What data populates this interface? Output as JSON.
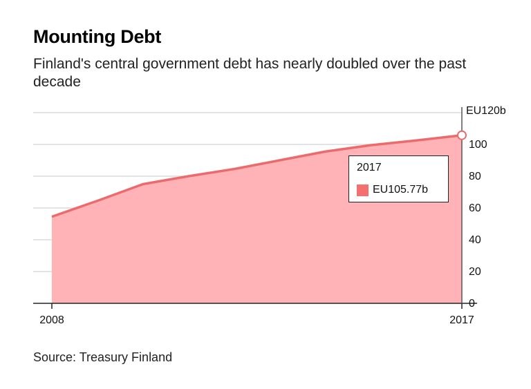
{
  "title": "Mounting Debt",
  "subtitle": "Finland's central government debt has nearly doubled over the past decade",
  "source": "Source: Treasury Finland",
  "colors": {
    "area": "#ffb3b6",
    "line": "#ec6a6c",
    "grid": "#dcdcdc",
    "axis": "#222222",
    "swatch": "#f46f6f"
  },
  "chart_data": {
    "type": "area",
    "title": "Mounting Debt",
    "x": [
      2008,
      2009,
      2010,
      2011,
      2012,
      2013,
      2014,
      2015,
      2016,
      2017
    ],
    "values": [
      54.5,
      64.5,
      75.0,
      80.0,
      84.5,
      90.0,
      95.5,
      99.5,
      102.5,
      105.77
    ],
    "x_tick_labels": [
      "2008",
      "2017"
    ],
    "y_ticks": [
      0,
      20,
      40,
      60,
      80,
      100,
      120
    ],
    "y_tick_labels": [
      "0",
      "20",
      "40",
      "60",
      "80",
      "100",
      "EU120b"
    ],
    "ylim": [
      0,
      120
    ],
    "xlabel": "",
    "ylabel": "",
    "grid": true,
    "highlight": {
      "x_label": "2017",
      "value_label": "EU105.77b"
    }
  }
}
